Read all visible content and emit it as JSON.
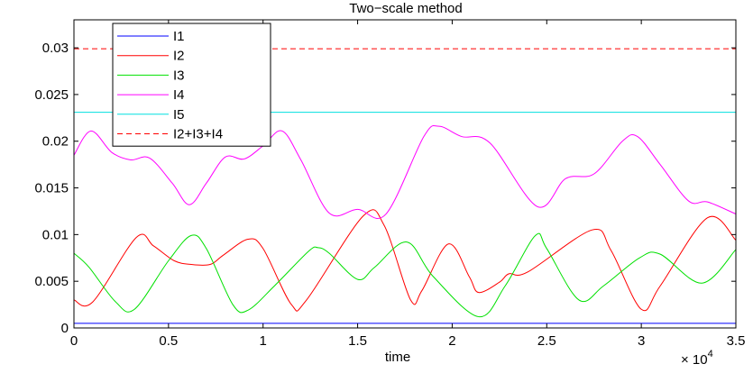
{
  "chart_data": {
    "type": "line",
    "title": "Two−scale method",
    "xlabel": "time",
    "ylabel": "",
    "x_multiplier_label": "× 10",
    "x_multiplier_exp": "4",
    "xlim": [
      0,
      35000
    ],
    "ylim": [
      0,
      0.033
    ],
    "xticks": [
      0,
      5000,
      10000,
      15000,
      20000,
      25000,
      30000,
      35000
    ],
    "xtick_labels": [
      "0",
      "0.5",
      "1",
      "1.5",
      "2",
      "2.5",
      "3",
      "3.5"
    ],
    "yticks": [
      0,
      0.005,
      0.01,
      0.015,
      0.02,
      0.025,
      0.03
    ],
    "ytick_labels": [
      "0",
      "0.005",
      "0.01",
      "0.015",
      "0.02",
      "0.025",
      "0.03"
    ],
    "grid": false,
    "legend_position": "top-left",
    "series": [
      {
        "name": "I1",
        "color": "#0000ff",
        "dash": "solid",
        "points": [
          [
            0,
            0.0005
          ],
          [
            35000,
            0.0005
          ]
        ]
      },
      {
        "name": "I2",
        "color": "#ff0000",
        "dash": "solid",
        "points": [
          [
            0,
            0.003
          ],
          [
            1000,
            0.0028
          ],
          [
            3300,
            0.0097
          ],
          [
            4200,
            0.0088
          ],
          [
            5300,
            0.0072
          ],
          [
            6200,
            0.0068
          ],
          [
            7200,
            0.0068
          ],
          [
            7900,
            0.0078
          ],
          [
            9200,
            0.0095
          ],
          [
            10000,
            0.0085
          ],
          [
            11500,
            0.0025
          ],
          [
            12300,
            0.003
          ],
          [
            15300,
            0.012
          ],
          [
            16400,
            0.011
          ],
          [
            17800,
            0.003
          ],
          [
            18400,
            0.004
          ],
          [
            19800,
            0.009
          ],
          [
            20900,
            0.0055
          ],
          [
            21400,
            0.0038
          ],
          [
            22500,
            0.0049
          ],
          [
            23000,
            0.0058
          ],
          [
            24000,
            0.006
          ],
          [
            27400,
            0.0105
          ],
          [
            28400,
            0.0083
          ],
          [
            30000,
            0.002
          ],
          [
            31000,
            0.0045
          ],
          [
            33500,
            0.0118
          ],
          [
            35000,
            0.0094
          ]
        ]
      },
      {
        "name": "I3",
        "color": "#00e000",
        "dash": "solid",
        "points": [
          [
            0,
            0.008
          ],
          [
            800,
            0.0065
          ],
          [
            2200,
            0.0028
          ],
          [
            3200,
            0.002
          ],
          [
            5000,
            0.0072
          ],
          [
            6200,
            0.0099
          ],
          [
            7000,
            0.0085
          ],
          [
            8400,
            0.0025
          ],
          [
            9200,
            0.0019
          ],
          [
            10600,
            0.0045
          ],
          [
            12400,
            0.0082
          ],
          [
            12900,
            0.0086
          ],
          [
            13500,
            0.008
          ],
          [
            15000,
            0.0052
          ],
          [
            15900,
            0.0065
          ],
          [
            17600,
            0.0092
          ],
          [
            19000,
            0.0055
          ],
          [
            21400,
            0.0012
          ],
          [
            22800,
            0.0045
          ],
          [
            24400,
            0.0099
          ],
          [
            25000,
            0.0085
          ],
          [
            26700,
            0.003
          ],
          [
            28000,
            0.0045
          ],
          [
            29900,
            0.0075
          ],
          [
            31000,
            0.0079
          ],
          [
            33200,
            0.0048
          ],
          [
            35000,
            0.0084
          ]
        ]
      },
      {
        "name": "I4",
        "color": "#ff00ff",
        "dash": "solid",
        "points": [
          [
            0,
            0.0185
          ],
          [
            900,
            0.0211
          ],
          [
            2000,
            0.0188
          ],
          [
            3000,
            0.018
          ],
          [
            4000,
            0.0182
          ],
          [
            5200,
            0.0155
          ],
          [
            6100,
            0.0132
          ],
          [
            7000,
            0.0155
          ],
          [
            8000,
            0.0183
          ],
          [
            9000,
            0.0181
          ],
          [
            10000,
            0.0195
          ],
          [
            11000,
            0.0211
          ],
          [
            12000,
            0.018
          ],
          [
            13500,
            0.0123
          ],
          [
            15000,
            0.0127
          ],
          [
            16500,
            0.0122
          ],
          [
            18500,
            0.0205
          ],
          [
            19300,
            0.0216
          ],
          [
            20500,
            0.0205
          ],
          [
            22000,
            0.0198
          ],
          [
            24500,
            0.013
          ],
          [
            26000,
            0.016
          ],
          [
            27500,
            0.0165
          ],
          [
            29000,
            0.02
          ],
          [
            29800,
            0.0205
          ],
          [
            31000,
            0.0175
          ],
          [
            32500,
            0.0136
          ],
          [
            33500,
            0.0135
          ],
          [
            35000,
            0.0122
          ]
        ]
      },
      {
        "name": "I5",
        "color": "#00e0e0",
        "dash": "solid",
        "points": [
          [
            0,
            0.0231
          ],
          [
            35000,
            0.0231
          ]
        ]
      },
      {
        "name": "I2+I3+I4",
        "color": "#ff0000",
        "dash": "dashed",
        "points": [
          [
            0,
            0.0299
          ],
          [
            35000,
            0.0299
          ]
        ]
      }
    ]
  }
}
